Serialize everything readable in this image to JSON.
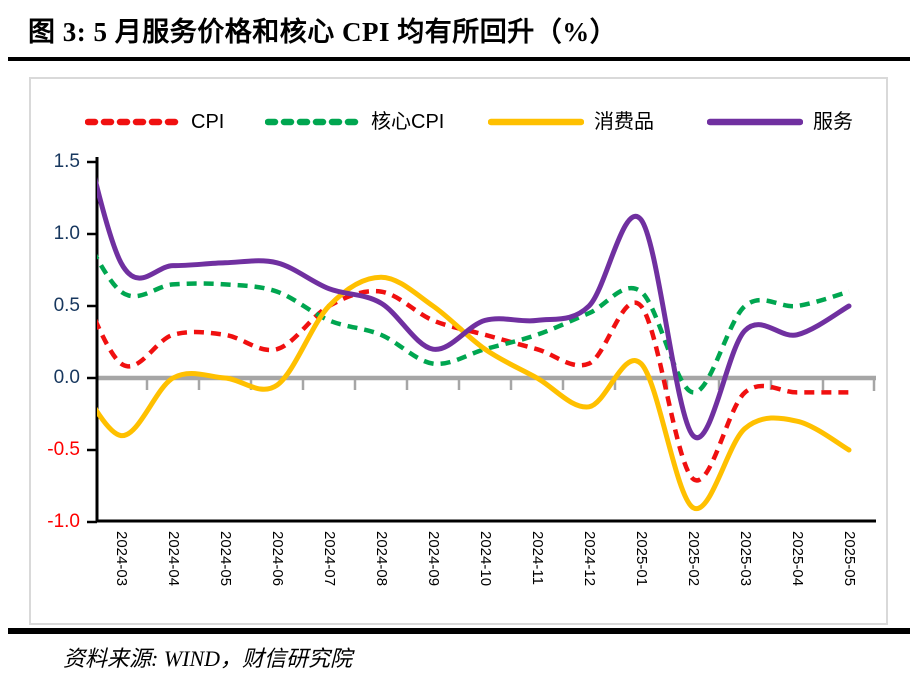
{
  "header": {
    "title": "图 3: 5 月服务价格和核心 CPI 均有所回升（%）"
  },
  "footer": {
    "source": "资料来源: WIND，财信研究院"
  },
  "chart_data": {
    "type": "line",
    "title": "图 3: 5 月服务价格和核心 CPI 均有所回升（%）",
    "categories": [
      "2024-03",
      "2024-04",
      "2024-05",
      "2024-06",
      "2024-07",
      "2024-08",
      "2024-09",
      "2024-10",
      "2024-11",
      "2024-12",
      "2025-01",
      "2025-02",
      "2025-03",
      "2025-04",
      "2025-05"
    ],
    "series": [
      {
        "name": "CPI",
        "color": "#f01010",
        "style": "dashed",
        "values": [
          0.1,
          0.3,
          0.3,
          0.2,
          0.5,
          0.6,
          0.4,
          0.3,
          0.2,
          0.1,
          0.5,
          -0.7,
          -0.1,
          -0.1,
          -0.1
        ],
        "left_edge_value": 0.47
      },
      {
        "name": "核心CPI",
        "color": "#00a650",
        "style": "dashed",
        "values": [
          0.6,
          0.65,
          0.65,
          0.6,
          0.4,
          0.3,
          0.1,
          0.2,
          0.3,
          0.45,
          0.6,
          -0.1,
          0.5,
          0.5,
          0.6
        ],
        "left_edge_value": 0.9
      },
      {
        "name": "消费品",
        "color": "#ffc000",
        "style": "solid",
        "values": [
          -0.4,
          0.0,
          0.0,
          -0.05,
          0.5,
          0.7,
          0.5,
          0.2,
          0.0,
          -0.2,
          0.1,
          -0.9,
          -0.35,
          -0.3,
          -0.5
        ],
        "left_edge_value": -0.15
      },
      {
        "name": "服务",
        "color": "#7030a0",
        "style": "solid",
        "values": [
          0.8,
          0.78,
          0.8,
          0.8,
          0.62,
          0.52,
          0.2,
          0.4,
          0.4,
          0.5,
          1.1,
          -0.4,
          0.33,
          0.3,
          0.5
        ],
        "left_edge_value": 1.47
      }
    ],
    "xlabel": "",
    "ylabel": "",
    "ylim": [
      -1.0,
      1.5
    ],
    "y_ticks": [
      "1.5",
      "1.0",
      "0.5",
      "0.0",
      "-0.5",
      "-1.0"
    ],
    "y_tick_positive_color": "#17375e",
    "y_tick_negative_color": "#ff0000",
    "zero_line_color": "#a6a6a6",
    "axis_color": "#000000",
    "grid": false,
    "legend_position": "top"
  }
}
